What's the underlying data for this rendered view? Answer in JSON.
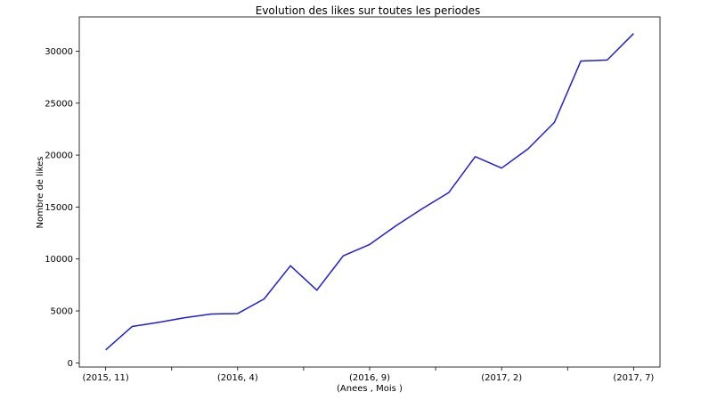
{
  "chart_data": {
    "type": "line",
    "title": "Evolution des likes sur toutes les periodes",
    "xlabel": "(Anees , Mois )",
    "ylabel": "Nombre de likes",
    "x_tick_labels": [
      "(2015, 11)",
      "(2016, 4)",
      "(2016, 9)",
      "(2017, 2)",
      "(2017, 7)"
    ],
    "x_labeled_tick_indices": [
      0,
      5,
      10,
      15,
      20
    ],
    "x_minor_tick_indices": [
      2.5,
      7.5,
      12.5,
      17.5
    ],
    "y_ticks": [
      0,
      5000,
      10000,
      15000,
      20000,
      25000,
      30000
    ],
    "y_tick_labels": [
      "0",
      "5000",
      "10000",
      "15000",
      "20000",
      "25000",
      "30000"
    ],
    "xlim": [
      -1,
      21
    ],
    "ylim": [
      -400,
      33300
    ],
    "grid": false,
    "legend": "none",
    "series": [
      {
        "color": "#1f1fd1",
        "values": [
          1250,
          3500,
          3900,
          4350,
          4700,
          4750,
          6150,
          9350,
          7000,
          10300,
          11400,
          13200,
          14850,
          16400,
          19850,
          18750,
          20600,
          23150,
          29050,
          29150,
          31700
        ]
      }
    ]
  }
}
